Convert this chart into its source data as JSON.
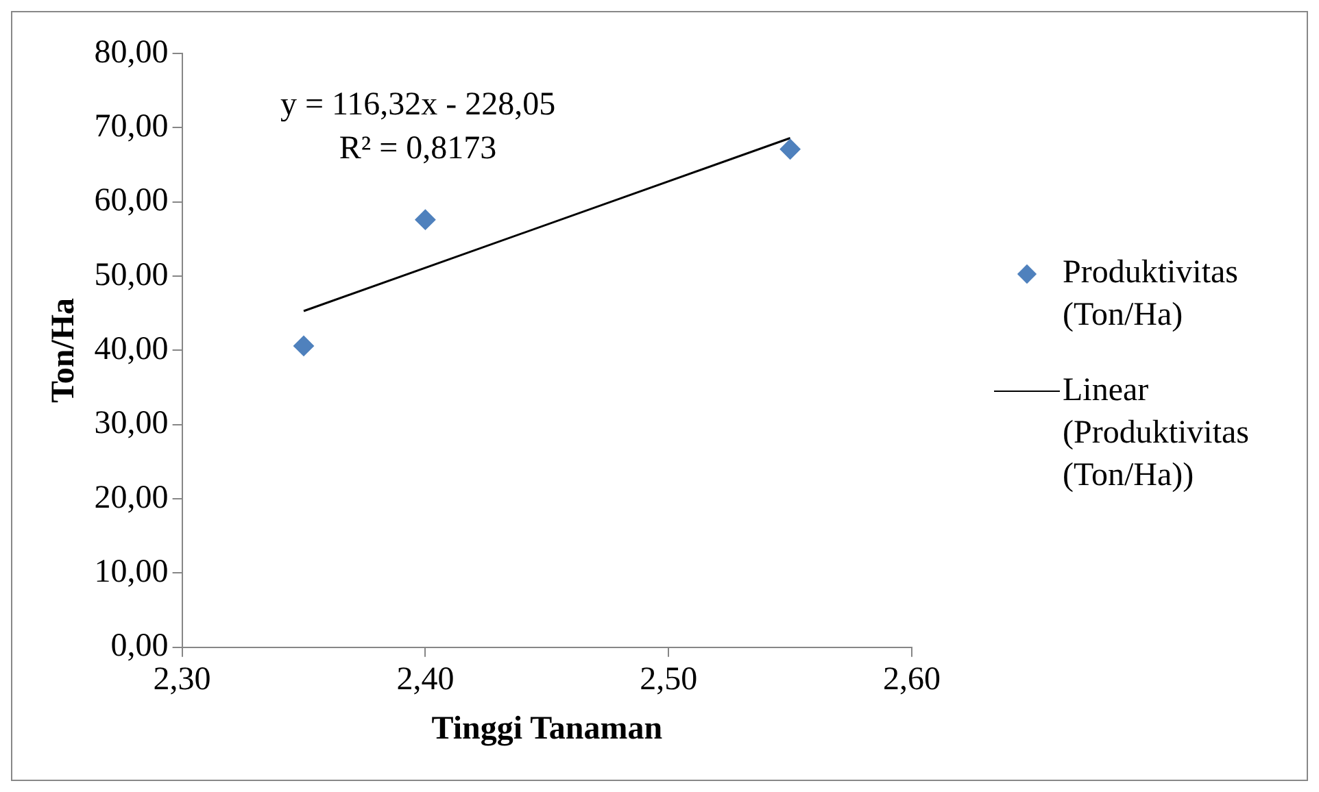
{
  "chart_data": {
    "type": "scatter",
    "xlabel": "Tinggi Tanaman",
    "ylabel": "Ton/Ha",
    "xlim": [
      2.3,
      2.6
    ],
    "xticks": [
      {
        "value": 2.3,
        "label": "2,30"
      },
      {
        "value": 2.4,
        "label": "2,40"
      },
      {
        "value": 2.5,
        "label": "2,50"
      },
      {
        "value": 2.6,
        "label": "2,60"
      }
    ],
    "ylim": [
      0,
      80
    ],
    "yticks": [
      {
        "value": 0,
        "label": "0,00"
      },
      {
        "value": 10,
        "label": "10,00"
      },
      {
        "value": 20,
        "label": "20,00"
      },
      {
        "value": 30,
        "label": "30,00"
      },
      {
        "value": 40,
        "label": "40,00"
      },
      {
        "value": 50,
        "label": "50,00"
      },
      {
        "value": 60,
        "label": "60,00"
      },
      {
        "value": 70,
        "label": "70,00"
      },
      {
        "value": 80,
        "label": "80,00"
      }
    ],
    "grid": false,
    "legend": "right",
    "annotations": [
      "y = 116,32x - 228,05",
      "R² = 0,8173"
    ],
    "series": [
      {
        "name": "Produktivitas (Ton/Ha)",
        "type": "scatter",
        "marker": "diamond",
        "color": "#4f81bd",
        "x": [
          2.35,
          2.4,
          2.55
        ],
        "values": [
          40.6,
          57.6,
          67.1
        ]
      },
      {
        "name": "Linear (Produktivitas (Ton/Ha))",
        "type": "line",
        "marker": "none",
        "color": "#000000",
        "x": [
          2.35,
          2.55
        ],
        "values": [
          45.3,
          68.6
        ]
      }
    ]
  }
}
